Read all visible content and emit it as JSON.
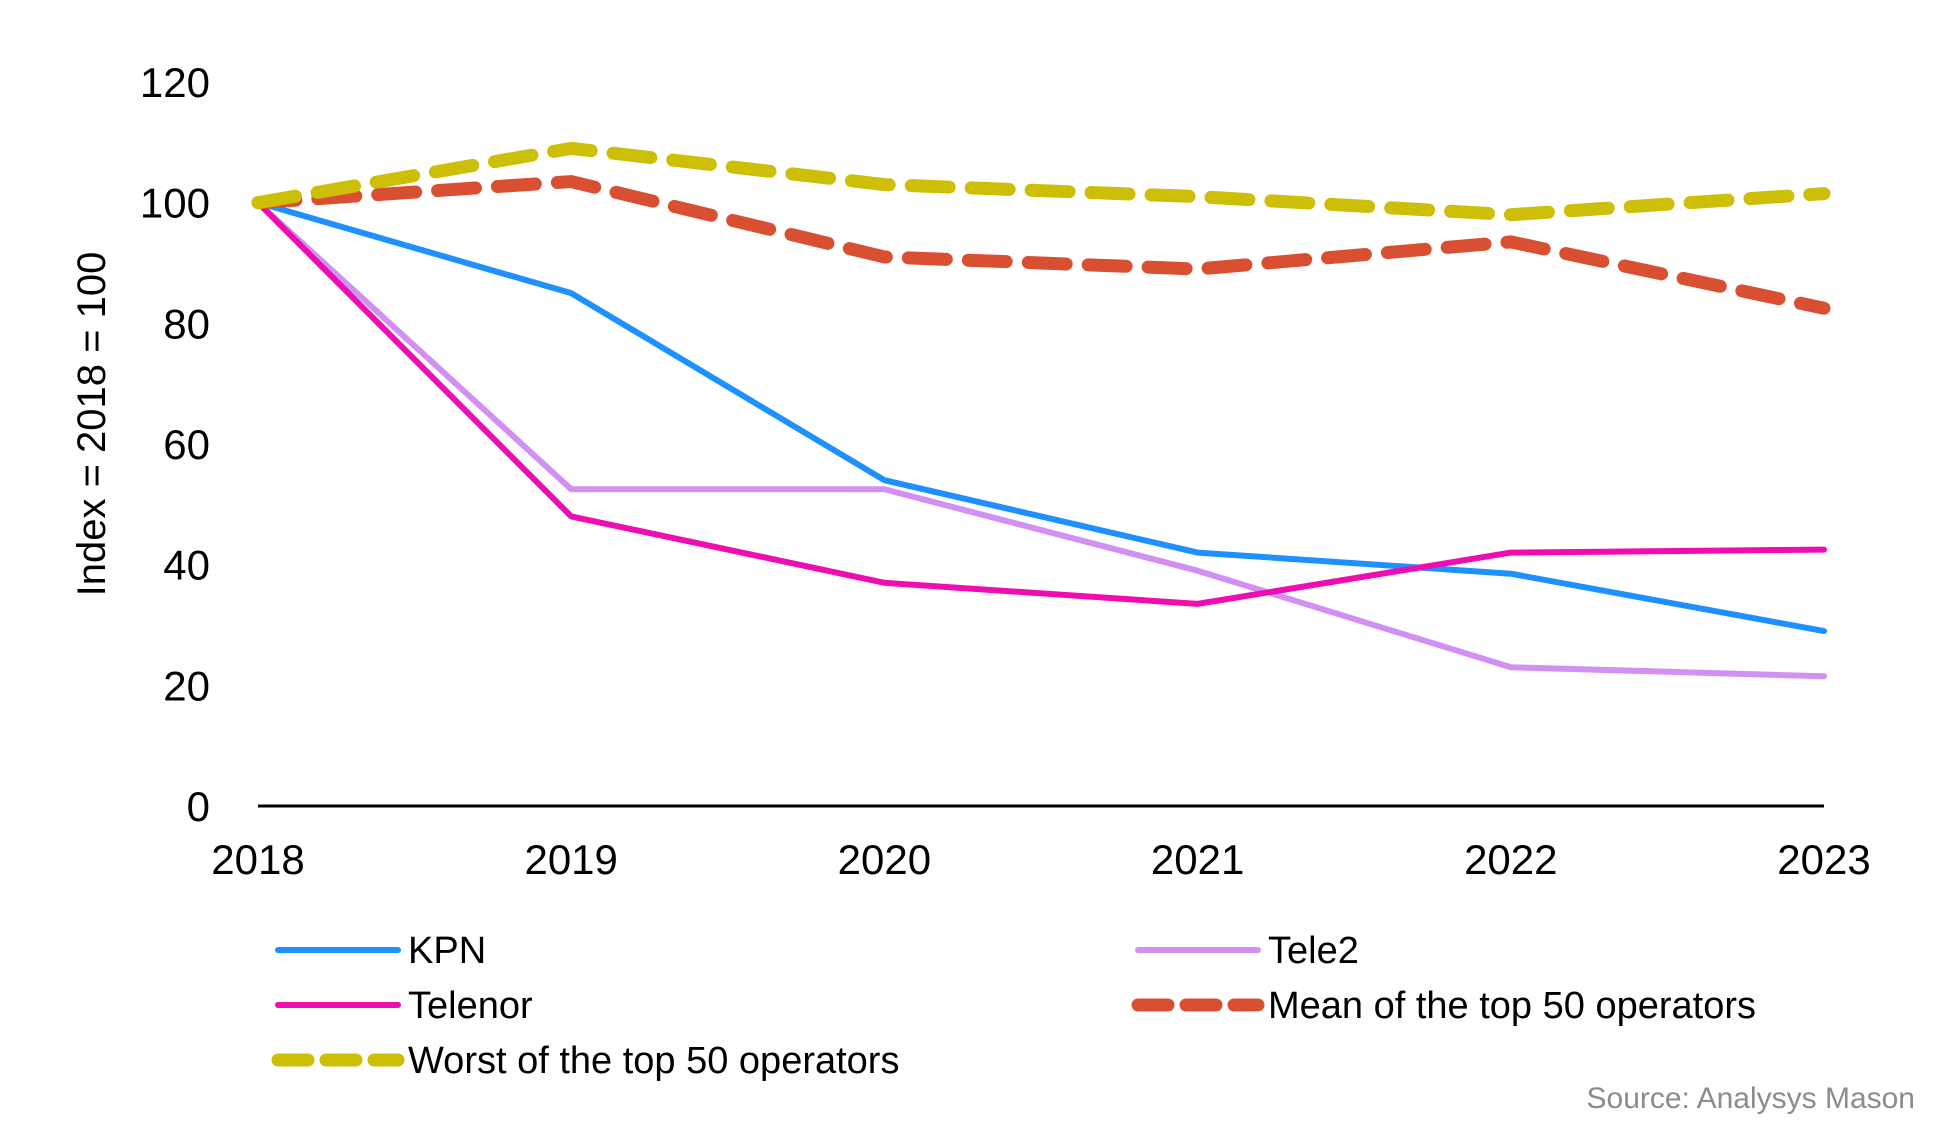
{
  "chart_data": {
    "type": "line",
    "x": [
      2018,
      2019,
      2020,
      2021,
      2022,
      2023
    ],
    "ylabel": "Index = 2018 = 100",
    "ylim": [
      0,
      120
    ],
    "yticks": [
      0,
      20,
      40,
      60,
      80,
      100,
      120
    ],
    "grid": false,
    "legend_position": "bottom",
    "series": [
      {
        "name": "KPN",
        "values": [
          100,
          85,
          54,
          42,
          38.5,
          29
        ],
        "color": "#1e90ff",
        "dashed": false
      },
      {
        "name": "Tele2",
        "values": [
          100,
          52.5,
          52.5,
          39,
          23,
          21.5
        ],
        "color": "#d291f2",
        "dashed": false
      },
      {
        "name": "Telenor",
        "values": [
          100,
          48,
          37,
          33.5,
          42,
          42.5
        ],
        "color": "#ee0db0",
        "dashed": false
      },
      {
        "name": "Mean of the top 50 operators",
        "values": [
          100,
          103.5,
          91,
          89,
          93.5,
          82.5
        ],
        "color": "#d94f32",
        "dashed": true
      },
      {
        "name": "Worst of the top 50 operators",
        "values": [
          100,
          109,
          103,
          101,
          98,
          101.5
        ],
        "color": "#cdbf07",
        "dashed": true
      }
    ],
    "source": "Source: Analysys Mason"
  }
}
